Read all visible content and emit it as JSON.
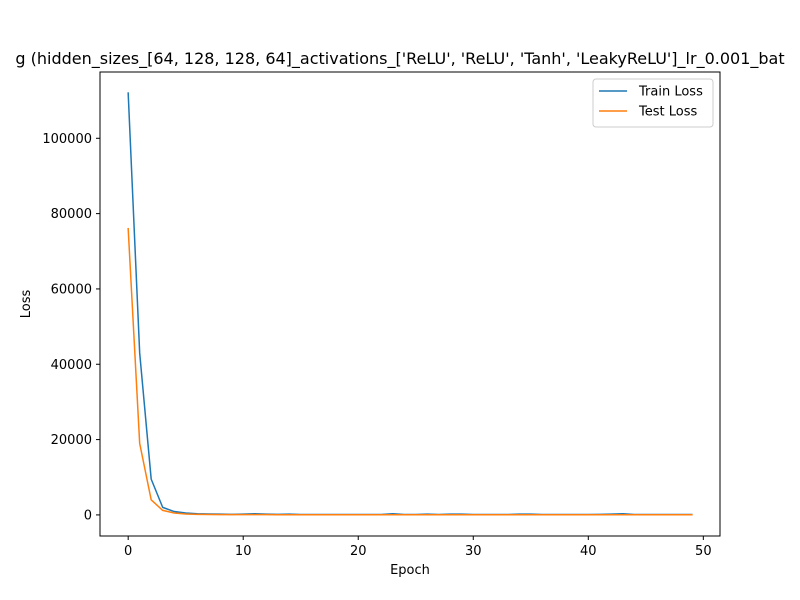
{
  "chart_data": {
    "type": "line",
    "title": "g (hidden_sizes_[64, 128, 128, 64]_activations_['ReLU', 'ReLU', 'Tanh', 'LeakyReLU']_lr_0.001_bat",
    "xlabel": "Epoch",
    "ylabel": "Loss",
    "xlim": [
      -2.45,
      51.45
    ],
    "ylim": [
      -5600,
      117600
    ],
    "xticks": [
      0,
      10,
      20,
      30,
      40,
      50
    ],
    "yticks": [
      0,
      20000,
      40000,
      60000,
      80000,
      100000
    ],
    "grid": false,
    "legend": {
      "position": "top-right"
    },
    "x": [
      0,
      1,
      2,
      3,
      4,
      5,
      6,
      7,
      8,
      9,
      10,
      11,
      12,
      13,
      14,
      15,
      16,
      17,
      18,
      19,
      20,
      21,
      22,
      23,
      24,
      25,
      26,
      27,
      28,
      29,
      30,
      31,
      32,
      33,
      34,
      35,
      36,
      37,
      38,
      39,
      40,
      41,
      42,
      43,
      44,
      45,
      46,
      47,
      48,
      49
    ],
    "series": [
      {
        "name": "Train Loss",
        "color": "#1f77b4",
        "values": [
          112000,
          43000,
          9500,
          2000,
          900,
          500,
          300,
          250,
          200,
          150,
          200,
          300,
          200,
          150,
          200,
          100,
          100,
          100,
          100,
          100,
          100,
          100,
          100,
          300,
          100,
          100,
          200,
          100,
          200,
          200,
          100,
          100,
          100,
          100,
          200,
          200,
          100,
          100,
          100,
          100,
          100,
          150,
          200,
          300,
          100,
          100,
          100,
          100,
          100,
          100
        ]
      },
      {
        "name": "Test Loss",
        "color": "#ff7f0e",
        "values": [
          76000,
          19000,
          4000,
          1200,
          500,
          250,
          150,
          100,
          80,
          60,
          60,
          60,
          60,
          50,
          50,
          40,
          40,
          40,
          40,
          40,
          40,
          40,
          40,
          40,
          40,
          40,
          40,
          40,
          40,
          40,
          40,
          40,
          40,
          40,
          40,
          40,
          40,
          40,
          40,
          40,
          40,
          40,
          40,
          40,
          40,
          40,
          40,
          40,
          40,
          40
        ]
      }
    ]
  }
}
